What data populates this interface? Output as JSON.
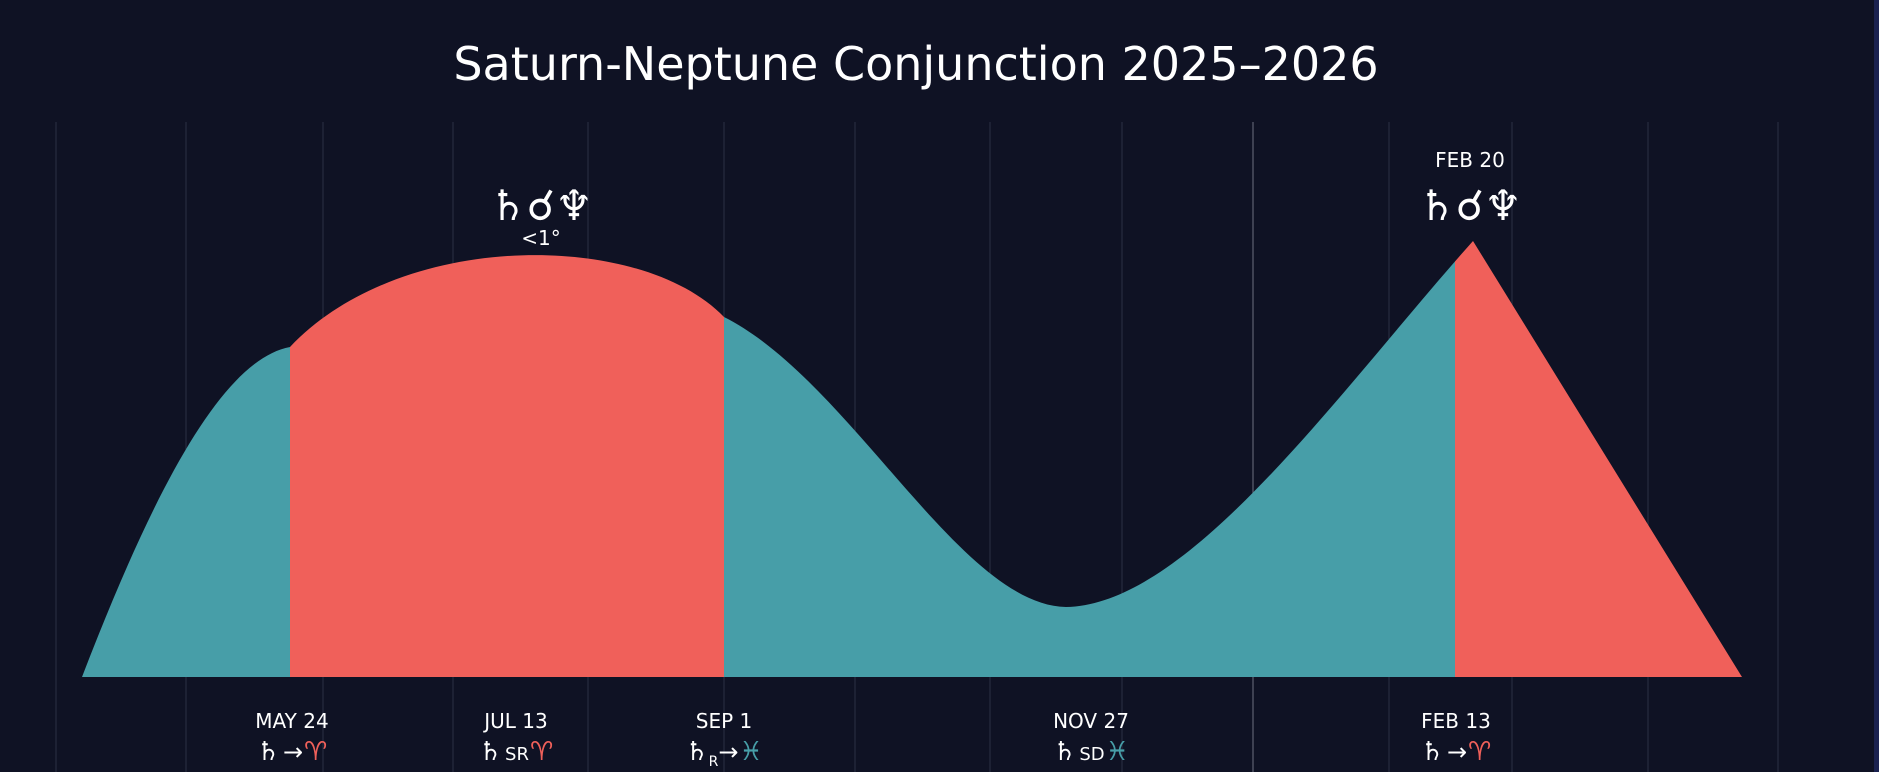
{
  "chart_data": {
    "type": "area",
    "title": "Saturn-Neptune Conjunction 2025–2026",
    "xlabel": "",
    "ylabel": "",
    "grid": true,
    "colors": {
      "background": "#0f1224",
      "pisces": "#479ea8",
      "aries": "#f0605a",
      "gridline": "#2b3044",
      "text": "#ffffff"
    },
    "segments": [
      {
        "sign": "Pisces",
        "from": "start",
        "to": "MAY 24",
        "color": "#479ea8"
      },
      {
        "sign": "Aries",
        "from": "MAY 24",
        "to": "SEP 1",
        "color": "#f0605a"
      },
      {
        "sign": "Pisces",
        "from": "SEP 1",
        "to": "FEB 13",
        "color": "#479ea8"
      },
      {
        "sign": "Aries",
        "from": "FEB 13",
        "to": "end",
        "color": "#f0605a"
      }
    ],
    "events": [
      {
        "date": "MAY 24",
        "glyph_planet": "♄",
        "glyph_mid": "→",
        "glyph_sign": "♈",
        "sign_color": "#f0605a"
      },
      {
        "date": "JUL 13",
        "glyph_planet": "♄",
        "glyph_mid": "SR",
        "glyph_sign": "♈",
        "sign_color": "#f0605a"
      },
      {
        "date": "SEP 1",
        "glyph_planet": "♄",
        "glyph_sub": "R",
        "glyph_mid": "→",
        "glyph_sign": "♓",
        "sign_color": "#479ea8"
      },
      {
        "date": "NOV 27",
        "glyph_planet": "♄",
        "glyph_mid": "SD",
        "glyph_sign": "♓",
        "sign_color": "#479ea8"
      },
      {
        "date": "FEB 13",
        "glyph_planet": "♄",
        "glyph_mid": "→",
        "glyph_sign": "♈",
        "sign_color": "#f0605a"
      }
    ],
    "peaks": [
      {
        "symbol": "♄☌♆",
        "note": "<1°",
        "date": ""
      },
      {
        "symbol": "♄☌♆",
        "note": "",
        "date": "FEB 20"
      }
    ]
  }
}
